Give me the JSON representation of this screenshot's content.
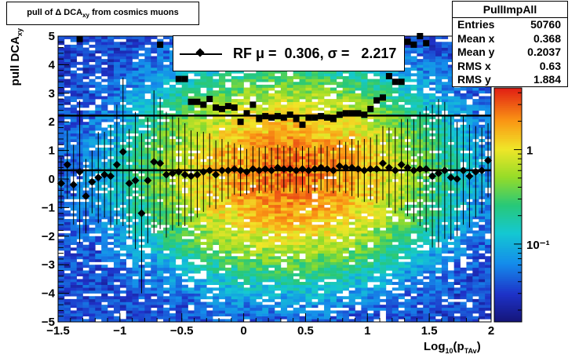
{
  "title_box": {
    "prefix": "pull of ",
    "symbol": "Δ",
    "main": " DCA",
    "sub": "xy",
    "suffix": "  from cosmics muons"
  },
  "stats": {
    "name": "PullImpAll",
    "rows": [
      {
        "label": "Entries",
        "value": "50760"
      },
      {
        "label": "Mean x",
        "value": "0.368"
      },
      {
        "label": "Mean y",
        "value": "0.2037"
      },
      {
        "label": "RMS x",
        "value": "0.63"
      },
      {
        "label": "RMS y",
        "value": "1.884"
      }
    ]
  },
  "legend": {
    "label": "RF μ =  0.306, σ =   2.217"
  },
  "x_title": {
    "main": "Log",
    "sub1": "10",
    "mid": "(p",
    "sub2": "TAv",
    "end": ")"
  },
  "y_title": {
    "main": "pull DCA",
    "sub": "xy"
  },
  "chart_data": {
    "type": "heatmap",
    "xlim": [
      -1.5,
      2.0
    ],
    "ylim": [
      -5,
      5
    ],
    "x_ticks": [
      "−1.5",
      "−1",
      "−0.5",
      "0",
      "0.5",
      "1",
      "1.5",
      "2"
    ],
    "x_tick_values": [
      -1.5,
      -1,
      -0.5,
      0,
      0.5,
      1,
      1.5,
      2
    ],
    "y_ticks": [
      "−5",
      "−4",
      "−3",
      "−2",
      "−1",
      "0",
      "1",
      "2",
      "3",
      "4",
      "5"
    ],
    "y_tick_values": [
      -5,
      -4,
      -3,
      -2,
      -1,
      0,
      1,
      2,
      3,
      4,
      5
    ],
    "color_scale": {
      "log": true,
      "labels": [
        "1",
        "10⁻¹"
      ],
      "label_values": [
        1,
        0.1
      ],
      "zmin": 0.015,
      "zmax": 4.5
    },
    "heatmap_model": {
      "x_center": 0.37,
      "x_sigma": 0.55,
      "y_center": 0.2,
      "y_sigma": 1.6,
      "peak": 2.6,
      "floor": 0.035
    },
    "mean_points": {
      "marker": "diamond",
      "x": [
        -1.475,
        -1.425,
        -1.375,
        -1.325,
        -1.275,
        -1.225,
        -1.175,
        -1.125,
        -1.075,
        -1.025,
        -0.975,
        -0.925,
        -0.875,
        -0.825,
        -0.775,
        -0.725,
        -0.675,
        -0.625,
        -0.575,
        -0.525,
        -0.475,
        -0.425,
        -0.375,
        -0.325,
        -0.275,
        -0.225,
        -0.175,
        -0.125,
        -0.075,
        -0.025,
        0.025,
        0.075,
        0.125,
        0.175,
        0.225,
        0.275,
        0.325,
        0.375,
        0.425,
        0.475,
        0.525,
        0.575,
        0.625,
        0.675,
        0.725,
        0.775,
        0.825,
        0.875,
        0.925,
        0.975,
        1.025,
        1.075,
        1.125,
        1.175,
        1.225,
        1.275,
        1.325,
        1.375,
        1.425,
        1.475,
        1.525,
        1.575,
        1.625,
        1.675,
        1.725,
        1.775,
        1.825,
        1.875,
        1.925,
        1.975
      ],
      "y": [
        -0.15,
        0.5,
        -0.2,
        0.25,
        -0.6,
        -0.1,
        0.05,
        0.15,
        0.1,
        0.5,
        0.95,
        -0.15,
        -0.05,
        -1.2,
        -0.05,
        0.6,
        0.55,
        0.15,
        0.2,
        0.25,
        0.15,
        0.1,
        0.15,
        0.25,
        0.3,
        0.15,
        0.3,
        0.3,
        0.35,
        0.3,
        0.25,
        0.35,
        0.3,
        0.35,
        0.3,
        0.4,
        0.35,
        0.35,
        0.3,
        0.35,
        0.3,
        0.35,
        0.4,
        0.35,
        0.3,
        0.45,
        0.4,
        0.4,
        0.35,
        0.3,
        0.35,
        0.35,
        0.55,
        0.4,
        0.3,
        0.5,
        0.4,
        0.3,
        0.35,
        0.35,
        0.1,
        0.2,
        0.3,
        0.05,
        0.0,
        0.3,
        0.1,
        0.25,
        0.3,
        0.65
      ],
      "err": [
        0.9,
        1.2,
        1.4,
        2.5,
        1.3,
        1.1,
        1.6,
        1.5,
        1.8,
        2.1,
        2.6,
        1.9,
        2.4,
        2.8,
        2.2,
        2.5,
        2.3,
        2.2,
        2.0,
        1.9,
        1.8,
        1.6,
        1.5,
        1.4,
        1.3,
        1.2,
        1.1,
        1.0,
        0.9,
        0.9,
        0.8,
        0.8,
        0.8,
        0.8,
        0.8,
        0.8,
        0.8,
        0.8,
        0.8,
        0.8,
        0.8,
        0.8,
        0.8,
        0.8,
        0.8,
        0.9,
        0.9,
        1.0,
        1.0,
        1.1,
        1.1,
        1.2,
        1.3,
        1.4,
        1.5,
        1.6,
        1.7,
        1.8,
        2.0,
        2.2,
        2.5,
        2.6,
        2.4,
        2.2,
        2.0,
        1.9,
        1.8,
        1.6,
        1.5,
        1.3
      ],
      "fit_mean": 0.306
    },
    "rms_points": {
      "marker": "square",
      "x": [
        -1.325,
        -0.675,
        -0.525,
        -0.475,
        -0.425,
        -0.375,
        -0.325,
        -0.275,
        -0.225,
        -0.175,
        -0.125,
        -0.075,
        -0.025,
        0.025,
        0.075,
        0.125,
        0.175,
        0.225,
        0.275,
        0.325,
        0.375,
        0.425,
        0.475,
        0.525,
        0.575,
        0.625,
        0.675,
        0.725,
        0.775,
        0.825,
        0.875,
        0.925,
        0.975,
        1.025,
        1.075,
        1.125,
        1.175,
        1.225,
        1.275,
        1.325,
        1.375,
        1.425,
        1.475
      ],
      "y": [
        4.9,
        4.7,
        3.5,
        3.5,
        2.7,
        2.7,
        2.6,
        2.8,
        2.5,
        2.45,
        2.55,
        2.5,
        2.0,
        2.3,
        2.6,
        2.1,
        2.2,
        2.15,
        2.2,
        2.15,
        2.25,
        2.1,
        1.9,
        2.15,
        2.15,
        2.2,
        2.15,
        2.1,
        2.25,
        2.3,
        2.3,
        2.3,
        2.25,
        2.45,
        2.75,
        2.85,
        3.6,
        3.4,
        3.4,
        4.8,
        4.7,
        5.0,
        4.75
      ],
      "fit_sigma": 2.217
    }
  }
}
